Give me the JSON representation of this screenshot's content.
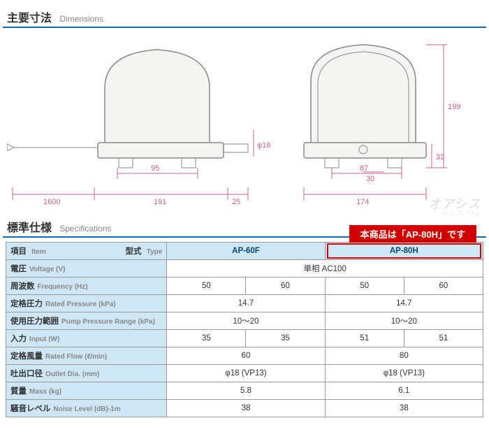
{
  "sections": {
    "dimensions": {
      "jp": "主要寸法",
      "en": "Dimensions"
    },
    "specifications": {
      "jp": "標準仕様",
      "en": "Specifications"
    }
  },
  "banner": "本商品は「AP-80H」です",
  "watermark": {
    "main": "オアシス",
    "sub": "MALDEPO.jp"
  },
  "dims": {
    "d1600": "1600",
    "d191": "191",
    "d25": "25",
    "d95": "95",
    "phi18": "φ18",
    "d174": "174",
    "d87": "87",
    "d30": "30",
    "d33": "33",
    "d199": "199"
  },
  "table": {
    "header": {
      "item_jp": "項目",
      "item_en": "Item",
      "type_jp": "型式",
      "type_en": "Type",
      "model1": "AP-60F",
      "model2": "AP-80H"
    },
    "rows": [
      {
        "jp": "電圧",
        "en": "Voltage (V)",
        "span": true,
        "val": "単相 AC100"
      },
      {
        "jp": "周波数",
        "en": "Frequency (Hz)",
        "v": [
          "50",
          "60",
          "50",
          "60"
        ]
      },
      {
        "jp": "定格圧力",
        "en": "Rated Pressure (kPa)",
        "v2": [
          "14.7",
          "14.7"
        ]
      },
      {
        "jp": "使用圧力範囲",
        "en": "Pump Pressure Range (kPa)",
        "v2": [
          "10～20",
          "10～20"
        ]
      },
      {
        "jp": "入力",
        "en": "Input (W)",
        "v": [
          "35",
          "35",
          "51",
          "51"
        ]
      },
      {
        "jp": "定格風量",
        "en": "Rated Flow (ℓ/min)",
        "v2": [
          "60",
          "80"
        ]
      },
      {
        "jp": "吐出口径",
        "en": "Outlet Dia. (mm)",
        "v2": [
          "φ18 (VP13)",
          "φ18 (VP13)"
        ]
      },
      {
        "jp": "質量",
        "en": "Mass (kg)",
        "v2": [
          "5.8",
          "6.1"
        ]
      },
      {
        "jp": "騒音レベル",
        "en": "Noise Level (dB)-1m",
        "v2": [
          "38",
          "38"
        ]
      }
    ]
  },
  "colors": {
    "accent": "#0070b8",
    "dim": "#d06090",
    "header_bg": "#cfe6f5",
    "header_text": "#004878",
    "red": "#d00000",
    "border": "#999999"
  }
}
